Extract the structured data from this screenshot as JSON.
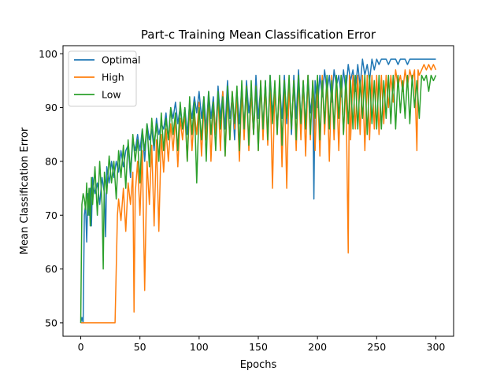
{
  "chart_data": {
    "type": "line",
    "title": "Part-c Training Mean Classification Error",
    "xlabel": "Epochs",
    "ylabel": "Mean Classification Error",
    "xlim": [
      -15,
      315
    ],
    "ylim": [
      47.5,
      101.5
    ],
    "x_ticks": [
      0,
      50,
      100,
      150,
      200,
      250,
      300
    ],
    "y_ticks": [
      50,
      60,
      70,
      80,
      90,
      100
    ],
    "grid": false,
    "legend_position": "top-left",
    "series": [
      {
        "name": "Optimal",
        "color": "#1f77b4",
        "x": [
          0,
          1,
          2,
          3,
          4,
          5,
          6,
          7,
          8,
          9,
          10,
          12,
          14,
          16,
          18,
          20,
          21,
          22,
          24,
          26,
          28,
          30,
          32,
          34,
          36,
          38,
          40,
          42,
          44,
          46,
          48,
          50,
          52,
          54,
          56,
          58,
          60,
          62,
          64,
          66,
          68,
          70,
          72,
          74,
          76,
          78,
          80,
          82,
          84,
          86,
          88,
          90,
          92,
          94,
          96,
          98,
          100,
          102,
          104,
          106,
          108,
          110,
          112,
          114,
          116,
          118,
          120,
          122,
          124,
          126,
          128,
          130,
          132,
          134,
          136,
          138,
          140,
          142,
          144,
          146,
          148,
          150,
          152,
          154,
          156,
          158,
          160,
          162,
          164,
          166,
          168,
          170,
          172,
          174,
          176,
          178,
          180,
          182,
          184,
          186,
          188,
          190,
          192,
          194,
          196,
          197,
          198,
          200,
          202,
          204,
          206,
          208,
          210,
          212,
          214,
          216,
          218,
          220,
          222,
          224,
          226,
          228,
          230,
          232,
          234,
          236,
          238,
          240,
          242,
          244,
          246,
          248,
          250,
          252,
          254,
          256,
          258,
          260,
          262,
          264,
          266,
          268,
          270,
          272,
          274,
          276,
          278,
          280,
          282,
          284,
          286,
          288,
          290,
          292,
          294,
          296,
          298,
          300
        ],
        "values": [
          50,
          51,
          50,
          70,
          72,
          65,
          74,
          70,
          75,
          68,
          77,
          74,
          76,
          72,
          77,
          74,
          66,
          79,
          76,
          80,
          77,
          80,
          78,
          82,
          79,
          82,
          83,
          77,
          84,
          82,
          85,
          82,
          86,
          80,
          87,
          84,
          86,
          82,
          88,
          85,
          87,
          86,
          89,
          84,
          90,
          88,
          91,
          87,
          90,
          86,
          90,
          85,
          91,
          88,
          92,
          89,
          93,
          88,
          92,
          86,
          93,
          88,
          92,
          85,
          94,
          88,
          93,
          86,
          95,
          88,
          92,
          84,
          93,
          87,
          94,
          86,
          95,
          89,
          93,
          85,
          96,
          88,
          94,
          86,
          95,
          84,
          96,
          89,
          93,
          86,
          94,
          88,
          96,
          87,
          95,
          85,
          96,
          88,
          97,
          87,
          95,
          86,
          96,
          89,
          93,
          73,
          95,
          90,
          96,
          92,
          97,
          93,
          96,
          91,
          97,
          94,
          96,
          92,
          97,
          93,
          98,
          95,
          97,
          93,
          98,
          94,
          99,
          96,
          98,
          95,
          99,
          97,
          99,
          98,
          99,
          99,
          99,
          98,
          99,
          99,
          99,
          98,
          99,
          99,
          99,
          98,
          99,
          99,
          99,
          99,
          99,
          99,
          99,
          99,
          99,
          99,
          99,
          99
        ]
      },
      {
        "name": "High",
        "color": "#ff7f0e",
        "x": [
          0,
          5,
          10,
          15,
          20,
          25,
          27,
          29,
          31,
          32,
          34,
          36,
          38,
          40,
          42,
          44,
          45,
          46,
          48,
          50,
          52,
          54,
          56,
          58,
          60,
          62,
          64,
          66,
          68,
          70,
          72,
          74,
          76,
          78,
          80,
          82,
          84,
          86,
          88,
          90,
          92,
          94,
          96,
          98,
          100,
          102,
          104,
          106,
          108,
          110,
          112,
          114,
          116,
          118,
          120,
          122,
          124,
          126,
          128,
          130,
          132,
          134,
          136,
          138,
          140,
          142,
          144,
          146,
          148,
          150,
          152,
          154,
          156,
          158,
          160,
          162,
          164,
          166,
          168,
          170,
          172,
          174,
          176,
          178,
          180,
          182,
          184,
          186,
          188,
          190,
          192,
          194,
          196,
          198,
          200,
          202,
          204,
          206,
          208,
          210,
          212,
          214,
          216,
          218,
          220,
          222,
          224,
          226,
          227,
          228,
          230,
          232,
          234,
          236,
          238,
          240,
          242,
          244,
          246,
          248,
          250,
          252,
          254,
          256,
          258,
          260,
          262,
          264,
          266,
          268,
          270,
          272,
          274,
          276,
          278,
          280,
          282,
          284,
          285,
          286,
          288,
          290,
          292,
          294,
          296,
          298,
          300
        ],
        "values": [
          50,
          50,
          50,
          50,
          50,
          50,
          50,
          50,
          70,
          73,
          69,
          75,
          67,
          76,
          72,
          78,
          52,
          74,
          80,
          70,
          82,
          56,
          80,
          72,
          83,
          68,
          84,
          67,
          85,
          78,
          86,
          80,
          87,
          82,
          88,
          79,
          88,
          84,
          89,
          80,
          90,
          82,
          89,
          85,
          91,
          81,
          90,
          84,
          92,
          80,
          91,
          85,
          92,
          82,
          93,
          81,
          92,
          84,
          93,
          86,
          92,
          80,
          93,
          84,
          94,
          82,
          93,
          85,
          94,
          82,
          95,
          84,
          94,
          83,
          95,
          75,
          94,
          85,
          95,
          79,
          95,
          75,
          94,
          86,
          95,
          82,
          95,
          84,
          95,
          81,
          96,
          84,
          95,
          82,
          95,
          81,
          96,
          85,
          95,
          80,
          96,
          84,
          95,
          82,
          96,
          85,
          95,
          63,
          96,
          84,
          96,
          86,
          96,
          85,
          96,
          82,
          96,
          84,
          96,
          86,
          96,
          85,
          96,
          87,
          96,
          90,
          96,
          91,
          97,
          94,
          96,
          93,
          97,
          94,
          97,
          95,
          97,
          82,
          97,
          96,
          97,
          98,
          97,
          98,
          97,
          98,
          97
        ]
      },
      {
        "name": "Low",
        "color": "#2ca02c",
        "x": [
          0,
          1,
          2,
          3,
          4,
          5,
          6,
          7,
          8,
          9,
          10,
          12,
          14,
          16,
          18,
          19,
          20,
          22,
          24,
          26,
          28,
          30,
          32,
          34,
          36,
          38,
          40,
          42,
          44,
          46,
          48,
          50,
          52,
          54,
          56,
          58,
          60,
          62,
          64,
          66,
          68,
          70,
          72,
          74,
          76,
          78,
          80,
          82,
          84,
          86,
          88,
          90,
          92,
          94,
          96,
          98,
          100,
          102,
          104,
          106,
          108,
          110,
          112,
          114,
          116,
          118,
          120,
          122,
          124,
          126,
          128,
          130,
          132,
          134,
          136,
          138,
          140,
          142,
          144,
          146,
          148,
          150,
          152,
          154,
          156,
          158,
          160,
          162,
          164,
          166,
          168,
          170,
          172,
          174,
          176,
          178,
          180,
          182,
          184,
          186,
          188,
          190,
          192,
          194,
          196,
          198,
          200,
          202,
          204,
          206,
          208,
          210,
          212,
          214,
          216,
          218,
          220,
          222,
          224,
          226,
          228,
          230,
          232,
          234,
          236,
          238,
          240,
          242,
          244,
          246,
          248,
          250,
          252,
          254,
          256,
          258,
          260,
          262,
          264,
          266,
          268,
          270,
          272,
          274,
          276,
          278,
          280,
          282,
          284,
          286,
          288,
          290,
          292,
          294,
          296,
          298,
          300
        ],
        "values": [
          50,
          72,
          74,
          73,
          71,
          76,
          70,
          75,
          68,
          77,
          72,
          79,
          70,
          80,
          72,
          60,
          78,
          74,
          81,
          76,
          80,
          73,
          82,
          77,
          83,
          75,
          84,
          78,
          85,
          80,
          84,
          76,
          86,
          82,
          87,
          79,
          88,
          83,
          87,
          80,
          89,
          82,
          88,
          84,
          90,
          85,
          89,
          82,
          91,
          86,
          90,
          80,
          92,
          85,
          91,
          76,
          90,
          84,
          92,
          80,
          93,
          85,
          91,
          82,
          93,
          86,
          92,
          81,
          94,
          84,
          93,
          87,
          94,
          82,
          95,
          86,
          94,
          83,
          95,
          85,
          94,
          82,
          95,
          86,
          95,
          84,
          96,
          87,
          95,
          85,
          96,
          83,
          95,
          88,
          96,
          86,
          95,
          84,
          96,
          87,
          95,
          86,
          96,
          85,
          95,
          88,
          96,
          84,
          95,
          87,
          96,
          86,
          95,
          86,
          96,
          88,
          96,
          85,
          96,
          87,
          95,
          86,
          96,
          86,
          95,
          88,
          96,
          85,
          96,
          87,
          95,
          86,
          96,
          86,
          95,
          88,
          96,
          87,
          96,
          86,
          96,
          89,
          95,
          88,
          96,
          87,
          96,
          90,
          95,
          88,
          96,
          95,
          96,
          93,
          96,
          95,
          96
        ]
      }
    ]
  }
}
